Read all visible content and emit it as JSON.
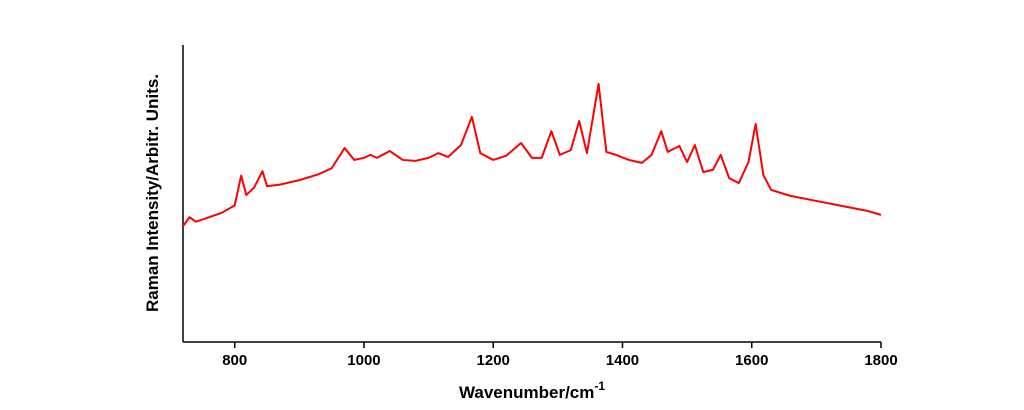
{
  "chart_data": {
    "type": "line",
    "x_label": "Wavenumber/cm",
    "x_label_superscript": "-1",
    "y_label": "Raman Intensity/Arbitr. Units.",
    "xlim": [
      720,
      1800
    ],
    "xticks": [
      800,
      1000,
      1200,
      1400,
      1600,
      1800
    ],
    "ylim": [
      0,
      100
    ],
    "series": [
      {
        "color": "#ff0000",
        "x": [
          720,
          730,
          740,
          760,
          780,
          800,
          810,
          818,
          830,
          843,
          850,
          870,
          900,
          930,
          950,
          970,
          985,
          1000,
          1010,
          1020,
          1040,
          1060,
          1080,
          1100,
          1115,
          1130,
          1150,
          1167,
          1180,
          1200,
          1220,
          1243,
          1260,
          1275,
          1290,
          1303,
          1320,
          1333,
          1345,
          1363,
          1375,
          1390,
          1410,
          1430,
          1445,
          1460,
          1470,
          1488,
          1500,
          1512,
          1525,
          1540,
          1552,
          1565,
          1580,
          1595,
          1606,
          1618,
          1630,
          1660,
          1700,
          1740,
          1780,
          1800
        ],
        "values": [
          39,
          42,
          40.5,
          42,
          43.5,
          46,
          56,
          49.5,
          52,
          57.5,
          52.5,
          53,
          54.5,
          56.5,
          58.5,
          65.3,
          61.3,
          62,
          63,
          62,
          64.3,
          61.3,
          61,
          62,
          63.6,
          62.3,
          66.3,
          75.8,
          63.6,
          61.3,
          62.7,
          67,
          62,
          62,
          71,
          63,
          64.6,
          74.4,
          63.6,
          86.9,
          64,
          63,
          61.3,
          60.3,
          63,
          71,
          64,
          66,
          60.6,
          66.3,
          57.2,
          58,
          63,
          55.2,
          53.5,
          60.6,
          73.4,
          56.2,
          51.2,
          49.2,
          47.5,
          45.8,
          44.1,
          42.8
        ]
      }
    ]
  }
}
